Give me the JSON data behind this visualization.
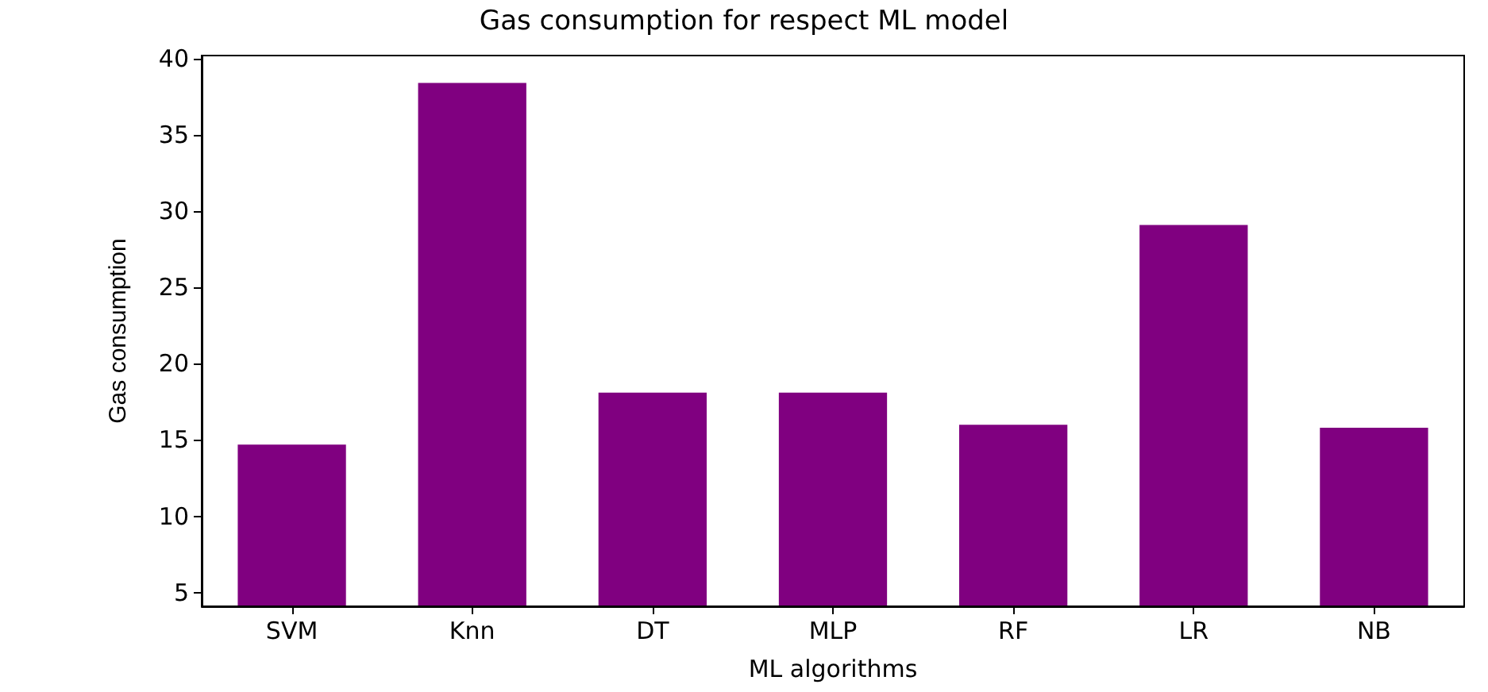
{
  "chart_data": {
    "type": "bar",
    "title": "Gas consumption for respect ML model",
    "xlabel": "ML algorithms",
    "ylabel": "Gas consumption",
    "categories": [
      "SVM",
      "Knn",
      "DT",
      "MLP",
      "RF",
      "LR",
      "NB"
    ],
    "values": [
      14.7,
      38.4,
      18.1,
      18.1,
      16.0,
      29.1,
      15.8
    ],
    "color": "#800080",
    "ylim": [
      4.1,
      40.2
    ],
    "yticks": [
      5,
      10,
      15,
      20,
      25,
      30,
      35,
      40
    ],
    "grid": false
  }
}
